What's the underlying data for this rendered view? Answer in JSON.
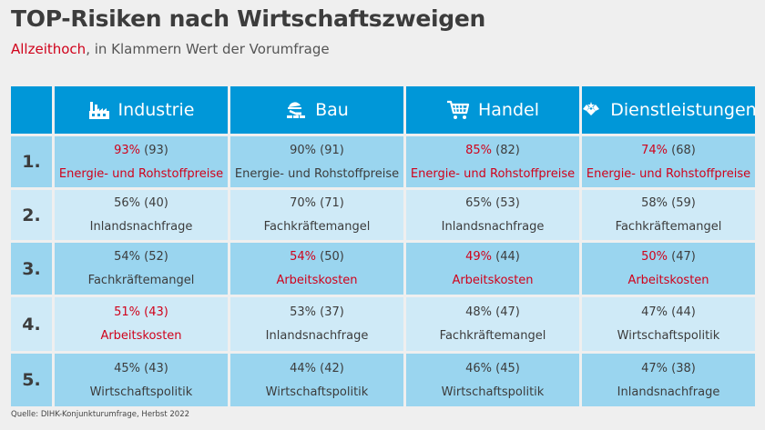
{
  "title": "TOP-Risiken nach Wirtschaftszweigen",
  "subtitle": {
    "highlight": "Allzeithoch",
    "rest": ", in Klammern Wert der Vorumfrage"
  },
  "columns": [
    {
      "label": "Industrie",
      "icon": "factory-icon"
    },
    {
      "label": "Bau",
      "icon": "construction-icon"
    },
    {
      "label": "Handel",
      "icon": "shopping-cart-icon"
    },
    {
      "label": "Dienstleistungen",
      "icon": "services-icon"
    }
  ],
  "rows": [
    {
      "rank": "1.",
      "cells": [
        {
          "value": "93%",
          "prev": " (93)",
          "label": "Energie- und Rohstoffpreise",
          "record": true
        },
        {
          "value": "90%",
          "prev": " (91)",
          "label": "Energie- und Rohstoffpreise",
          "record": false
        },
        {
          "value": "85%",
          "prev": " (82)",
          "label": "Energie- und Rohstoffpreise",
          "record": true
        },
        {
          "value": "74%",
          "prev": " (68)",
          "label": "Energie- und Rohstoffpreise",
          "record": true
        }
      ]
    },
    {
      "rank": "2.",
      "cells": [
        {
          "value": "56%",
          "prev": " (40)",
          "label": "Inlandsnachfrage",
          "record": false
        },
        {
          "value": "70%",
          "prev": " (71)",
          "label": "Fachkräftemangel",
          "record": false
        },
        {
          "value": "65%",
          "prev": " (53)",
          "label": "Inlandsnachfrage",
          "record": false
        },
        {
          "value": "58%",
          "prev": " (59)",
          "label": "Fachkräftemangel",
          "record": false
        }
      ]
    },
    {
      "rank": "3.",
      "cells": [
        {
          "value": "54%",
          "prev": " (52)",
          "label": "Fachkräftemangel",
          "record": false
        },
        {
          "value": "54%",
          "prev": " (50)",
          "label": "Arbeitskosten",
          "record": true
        },
        {
          "value": "49%",
          "prev": " (44)",
          "label": "Arbeitskosten",
          "record": true
        },
        {
          "value": "50%",
          "prev": " (47)",
          "label": "Arbeitskosten",
          "record": true
        }
      ]
    },
    {
      "rank": "4.",
      "cells": [
        {
          "value": "51%",
          "prev": " (43)",
          "label": "Arbeitskosten",
          "record": true,
          "prev_record": true
        },
        {
          "value": "53%",
          "prev": " (37)",
          "label": "Inlandsnachfrage",
          "record": false
        },
        {
          "value": "48%",
          "prev": " (47)",
          "label": "Fachkräftemangel",
          "record": false
        },
        {
          "value": "47%",
          "prev": " (44)",
          "label": "Wirtschaftspolitik",
          "record": false
        }
      ]
    },
    {
      "rank": "5.",
      "cells": [
        {
          "value": "45%",
          "prev": " (43)",
          "label": "Wirtschaftspolitik",
          "record": false
        },
        {
          "value": "44%",
          "prev": " (42)",
          "label": "Wirtschaftspolitik",
          "record": false
        },
        {
          "value": "46%",
          "prev": " (45)",
          "label": "Wirtschaftspolitik",
          "record": false
        },
        {
          "value": "47%",
          "prev": " (38)",
          "label": "Inlandsnachfrage",
          "record": false
        }
      ]
    }
  ],
  "source": "Quelle: DIHK-Konjunkturumfrage, Herbst 2022",
  "colors": {
    "header": "#0097d8",
    "row_dark": "#9ad5ef",
    "row_light": "#cfeaf7",
    "highlight": "#d0021b"
  }
}
